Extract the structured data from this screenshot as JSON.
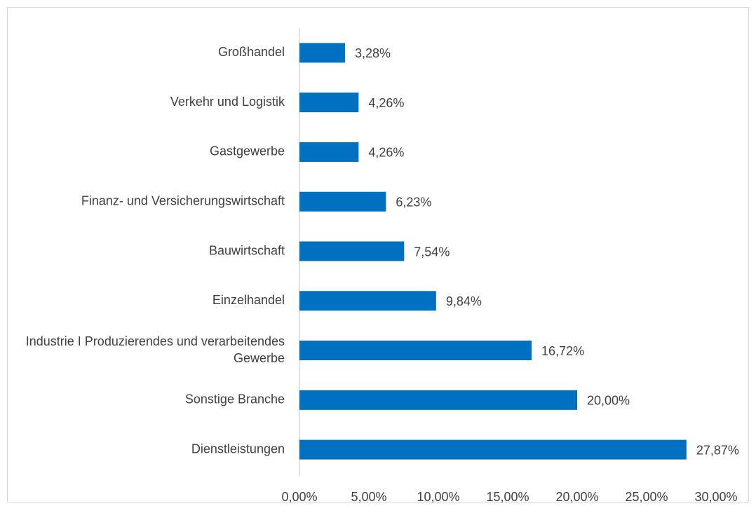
{
  "chart_data": {
    "type": "bar",
    "orientation": "horizontal",
    "categories": [
      "Großhandel",
      "Verkehr und Logistik",
      "Gastgewerbe",
      "Finanz- und Versicherungswirtschaft",
      "Bauwirtschaft",
      "Einzelhandel",
      "Industrie I Produzierendes und verarbeitendes Gewerbe",
      "Sonstige Branche",
      "Dienstleistungen"
    ],
    "values": [
      3.28,
      4.26,
      4.26,
      6.23,
      7.54,
      9.84,
      16.72,
      20.0,
      27.87
    ],
    "value_labels": [
      "3,28%",
      "4,26%",
      "4,26%",
      "6,23%",
      "7,54%",
      "9,84%",
      "16,72%",
      "20,00%",
      "27,87%"
    ],
    "color": "#0070c0",
    "xlim": [
      0,
      30
    ],
    "xticks": [
      {
        "value": 0,
        "label": "0,00%"
      },
      {
        "value": 5,
        "label": "5,00%"
      },
      {
        "value": 10,
        "label": "10,00%"
      },
      {
        "value": 15,
        "label": "15,00%"
      },
      {
        "value": 20,
        "label": "20,00%"
      },
      {
        "value": 25,
        "label": "25,00%"
      },
      {
        "value": 30,
        "label": "30,00%"
      }
    ],
    "grid": false
  }
}
